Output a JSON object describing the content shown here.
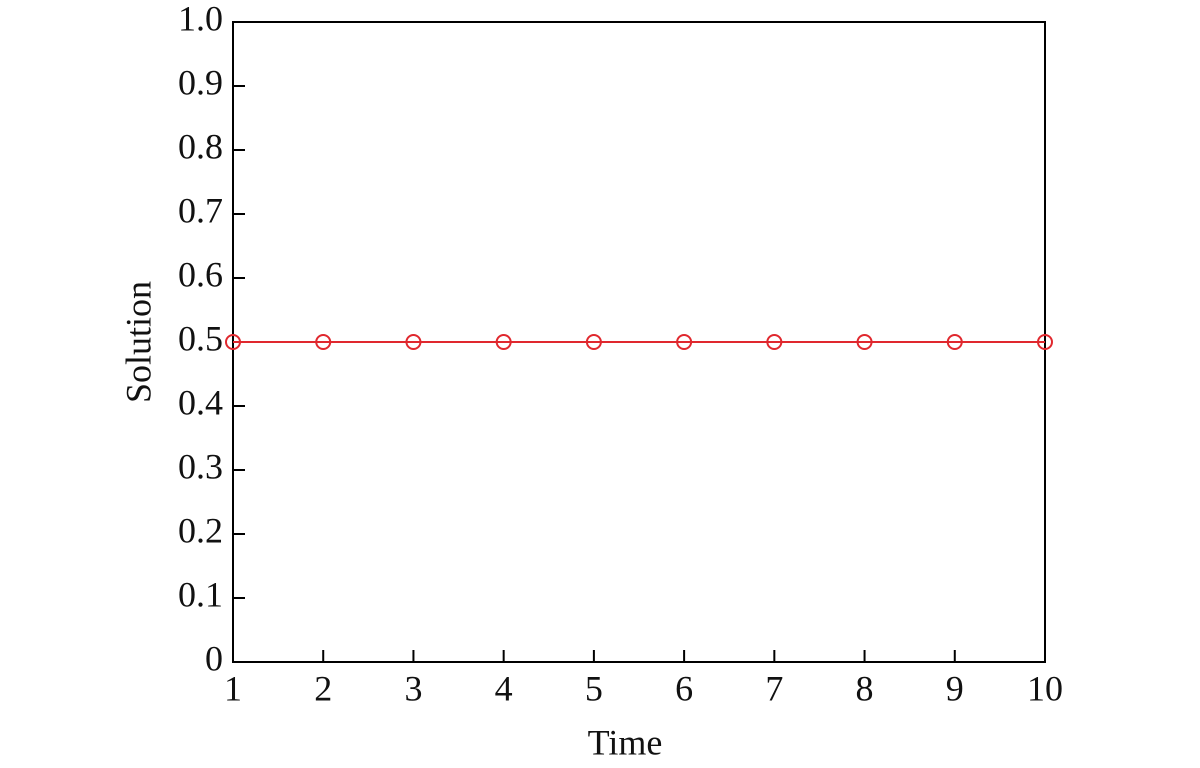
{
  "chart_data": {
    "type": "line",
    "xlabel": "Time",
    "ylabel": "Solution",
    "x": [
      1,
      2,
      3,
      4,
      5,
      6,
      7,
      8,
      9,
      10
    ],
    "series": [
      {
        "name": "Solution",
        "color": "#e0282e",
        "values": [
          0.5,
          0.5,
          0.5,
          0.5,
          0.5,
          0.5,
          0.5,
          0.5,
          0.5,
          0.5
        ]
      }
    ],
    "xlim": [
      1,
      10
    ],
    "xticks": [
      1,
      2,
      3,
      4,
      5,
      6,
      7,
      8,
      9,
      10
    ],
    "ylim": [
      0,
      1
    ],
    "yticks": [
      0,
      0.1,
      0.2,
      0.3,
      0.4,
      0.5,
      0.6,
      0.7,
      0.8,
      0.9,
      {
        "value": 1,
        "label": "1.0"
      }
    ],
    "grid": false,
    "markers": "circle"
  }
}
